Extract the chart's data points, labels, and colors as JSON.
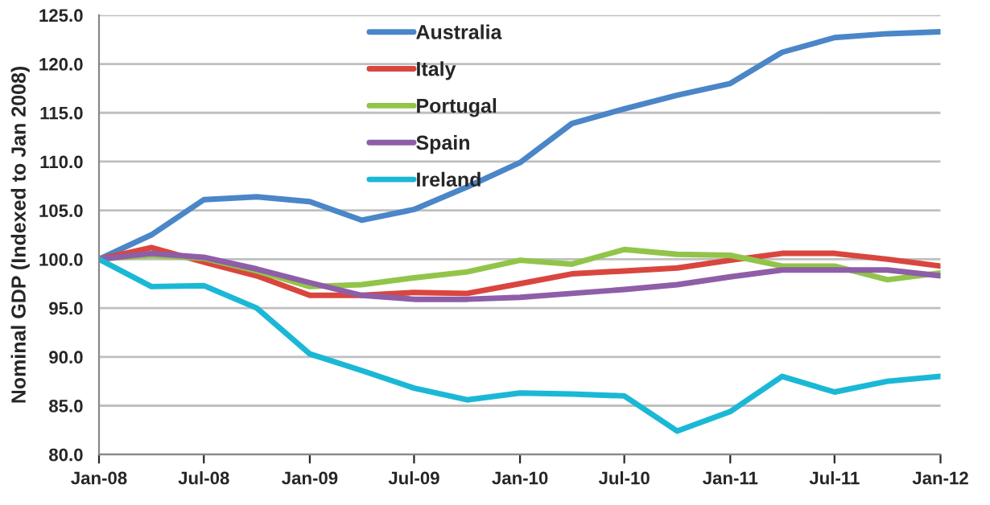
{
  "chart_data": {
    "type": "line",
    "ylabel": "Nominal GDP (Indexed to Jan 2008)",
    "x": [
      "2008-01",
      "2008-04",
      "2008-07",
      "2008-10",
      "2009-01",
      "2009-04",
      "2009-07",
      "2009-10",
      "2010-01",
      "2010-04",
      "2010-07",
      "2010-10",
      "2011-01",
      "2011-04",
      "2011-07",
      "2011-10",
      "2012-01"
    ],
    "series": [
      {
        "name": "Australia",
        "color": "#4a86c8",
        "values": [
          100,
          102.5,
          106.1,
          106.4,
          105.9,
          104,
          105.1,
          107.4,
          109.9,
          113.9,
          115.4,
          116.8,
          118,
          121.2,
          122.7,
          123.1,
          123.3
        ]
      },
      {
        "name": "Italy",
        "color": "#d9463e",
        "values": [
          100,
          101.2,
          99.7,
          98.3,
          96.3,
          96.3,
          96.6,
          96.5,
          97.5,
          98.5,
          98.8,
          99.1,
          99.9,
          100.6,
          100.6,
          100.0,
          99.3
        ]
      },
      {
        "name": "Portugal",
        "color": "#92c44a",
        "values": [
          100,
          100.4,
          100.1,
          98.8,
          97.2,
          97.4,
          98.1,
          98.7,
          99.9,
          99.5,
          101.0,
          100.5,
          100.4,
          99.3,
          99.3,
          97.9,
          98.6
        ]
      },
      {
        "name": "Spain",
        "color": "#8e5ea8",
        "values": [
          100,
          100.6,
          100.2,
          99.0,
          97.6,
          96.3,
          95.9,
          95.9,
          96.1,
          96.5,
          96.9,
          97.4,
          98.2,
          98.9,
          98.9,
          98.9,
          98.3
        ]
      },
      {
        "name": "Ireland",
        "color": "#1bb8d6",
        "values": [
          100,
          97.2,
          97.3,
          95.0,
          90.3,
          88.6,
          86.8,
          85.6,
          86.3,
          86.2,
          86.0,
          82.4,
          84.4,
          88.0,
          86.4,
          87.5,
          88.0
        ]
      }
    ],
    "ylim": [
      80,
      125
    ],
    "yticks": [
      {
        "value": 80,
        "label": "80.0"
      },
      {
        "value": 85,
        "label": "85.0"
      },
      {
        "value": 90,
        "label": "90.0"
      },
      {
        "value": 95,
        "label": "95.0"
      },
      {
        "value": 100,
        "label": "100.0"
      },
      {
        "value": 105,
        "label": "105.0"
      },
      {
        "value": 110,
        "label": "110.0"
      },
      {
        "value": 115,
        "label": "115.0"
      },
      {
        "value": 120,
        "label": "120.0"
      },
      {
        "value": 125,
        "label": "125.0"
      }
    ],
    "xticks": [
      {
        "value": "2008-01",
        "label": "Jan-08"
      },
      {
        "value": "2008-07",
        "label": "Jul-08"
      },
      {
        "value": "2009-01",
        "label": "Jan-09"
      },
      {
        "value": "2009-07",
        "label": "Jul-09"
      },
      {
        "value": "2010-01",
        "label": "Jan-10"
      },
      {
        "value": "2010-07",
        "label": "Jul-10"
      },
      {
        "value": "2011-01",
        "label": "Jan-11"
      },
      {
        "value": "2011-07",
        "label": "Jul-11"
      },
      {
        "value": "2012-01",
        "label": "Jan-12"
      }
    ],
    "xlim": [
      "2008-01",
      "2012-01"
    ],
    "grid": "y",
    "legend": "top",
    "marker": "none",
    "line_style": "solid"
  }
}
